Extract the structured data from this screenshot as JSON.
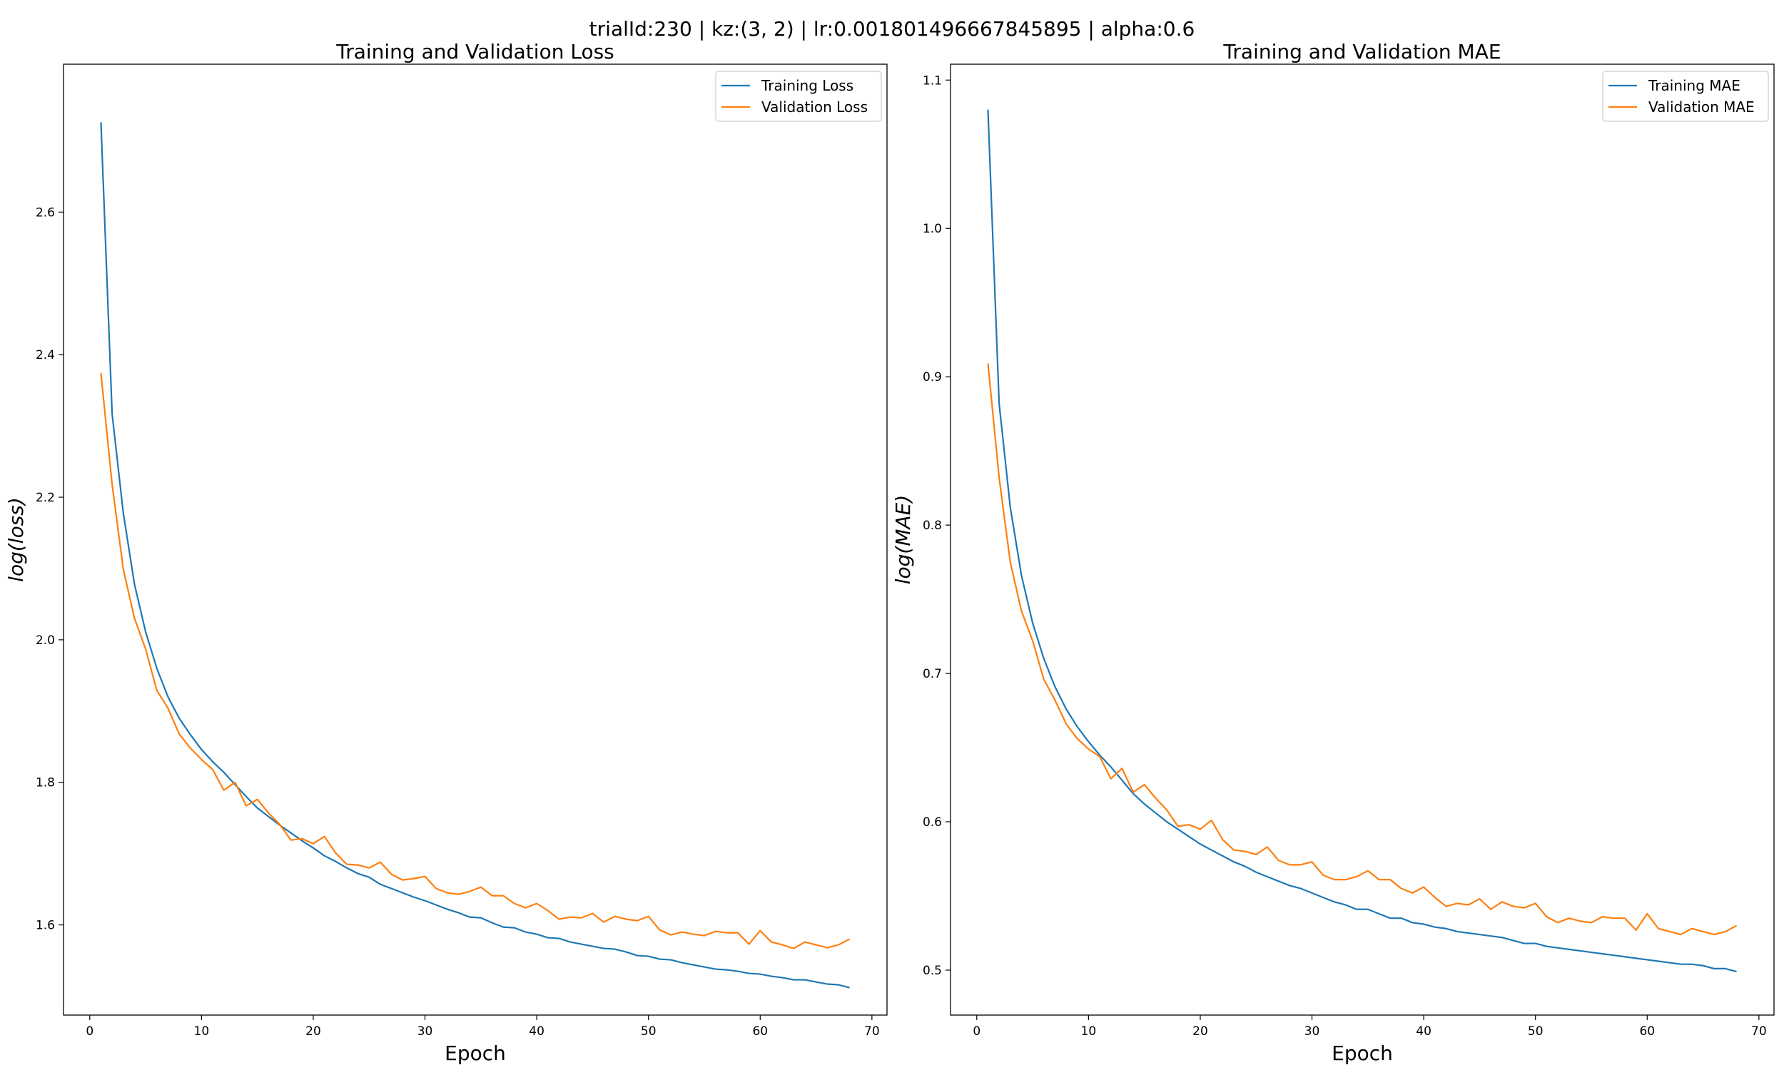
{
  "figure": {
    "suptitle": "trialId:230 | kz:(3, 2) | lr:0.001801496667845895 | alpha:0.6"
  },
  "colors": {
    "training": "#1f77b4",
    "validation": "#ff7f0e",
    "axes": "#000000",
    "background": "#ffffff"
  },
  "chart_data": [
    {
      "type": "line",
      "title": "Training and Validation Loss",
      "xlabel": "Epoch",
      "ylabel": "log(loss)",
      "xlim": [
        -2.35,
        71.35
      ],
      "ylim": [
        1.4735,
        2.8075
      ],
      "xticks": [
        0,
        10,
        20,
        30,
        40,
        50,
        60,
        70
      ],
      "yticks": [
        1.6,
        1.8,
        2.0,
        2.2,
        2.4,
        2.6
      ],
      "ytick_labels": [
        "1.6",
        "1.8",
        "2.0",
        "2.2",
        "2.4",
        "2.6"
      ],
      "grid": false,
      "legend_position": "upper right",
      "x": [
        1,
        2,
        3,
        4,
        5,
        6,
        7,
        8,
        9,
        10,
        11,
        12,
        13,
        14,
        15,
        16,
        17,
        18,
        19,
        20,
        21,
        22,
        23,
        24,
        25,
        26,
        27,
        28,
        29,
        30,
        31,
        32,
        33,
        34,
        35,
        36,
        37,
        38,
        39,
        40,
        41,
        42,
        43,
        44,
        45,
        46,
        47,
        48,
        49,
        50,
        51,
        52,
        53,
        54,
        55,
        56,
        57,
        58,
        59,
        60,
        61,
        62,
        63,
        64,
        65,
        66,
        67,
        68
      ],
      "series": [
        {
          "name": "Training Loss",
          "color": "#1f77b4",
          "values": [
            2.726,
            2.317,
            2.178,
            2.078,
            2.011,
            1.96,
            1.92,
            1.89,
            1.867,
            1.846,
            1.829,
            1.814,
            1.797,
            1.78,
            1.764,
            1.752,
            1.74,
            1.729,
            1.718,
            1.708,
            1.697,
            1.689,
            1.68,
            1.672,
            1.667,
            1.657,
            1.651,
            1.645,
            1.639,
            1.634,
            1.628,
            1.622,
            1.617,
            1.611,
            1.61,
            1.603,
            1.597,
            1.596,
            1.59,
            1.587,
            1.582,
            1.581,
            1.576,
            1.573,
            1.57,
            1.567,
            1.566,
            1.562,
            1.557,
            1.556,
            1.552,
            1.551,
            1.547,
            1.544,
            1.541,
            1.538,
            1.537,
            1.535,
            1.532,
            1.531,
            1.528,
            1.526,
            1.523,
            1.523,
            1.52,
            1.517,
            1.516,
            1.512
          ]
        },
        {
          "name": "Validation Loss",
          "color": "#ff7f0e",
          "values": [
            2.374,
            2.218,
            2.099,
            2.03,
            1.987,
            1.929,
            1.904,
            1.868,
            1.848,
            1.832,
            1.818,
            1.789,
            1.8,
            1.767,
            1.776,
            1.757,
            1.741,
            1.719,
            1.721,
            1.714,
            1.724,
            1.701,
            1.685,
            1.684,
            1.68,
            1.688,
            1.671,
            1.663,
            1.665,
            1.668,
            1.651,
            1.645,
            1.643,
            1.647,
            1.653,
            1.641,
            1.641,
            1.63,
            1.624,
            1.63,
            1.62,
            1.608,
            1.611,
            1.61,
            1.616,
            1.604,
            1.612,
            1.608,
            1.606,
            1.612,
            1.593,
            1.586,
            1.59,
            1.587,
            1.585,
            1.591,
            1.589,
            1.589,
            1.573,
            1.592,
            1.576,
            1.572,
            1.567,
            1.576,
            1.572,
            1.568,
            1.572,
            1.58
          ]
        }
      ]
    },
    {
      "type": "line",
      "title": "Training and Validation MAE",
      "xlabel": "Epoch",
      "ylabel": "log(MAE)",
      "xlim": [
        -2.35,
        71.35
      ],
      "ylim": [
        0.4697,
        1.1107
      ],
      "xticks": [
        0,
        10,
        20,
        30,
        40,
        50,
        60,
        70
      ],
      "yticks": [
        0.5,
        0.6,
        0.7,
        0.8,
        0.9,
        1.0,
        1.1
      ],
      "ytick_labels": [
        "0.5",
        "0.6",
        "0.7",
        "0.8",
        "0.9",
        "1.0",
        "1.1"
      ],
      "grid": false,
      "legend_position": "upper right",
      "x": [
        1,
        2,
        3,
        4,
        5,
        6,
        7,
        8,
        9,
        10,
        11,
        12,
        13,
        14,
        15,
        16,
        17,
        18,
        19,
        20,
        21,
        22,
        23,
        24,
        25,
        26,
        27,
        28,
        29,
        30,
        31,
        32,
        33,
        34,
        35,
        36,
        37,
        38,
        39,
        40,
        41,
        42,
        43,
        44,
        45,
        46,
        47,
        48,
        49,
        50,
        51,
        52,
        53,
        54,
        55,
        56,
        57,
        58,
        59,
        60,
        61,
        62,
        63,
        64,
        65,
        66,
        67,
        68
      ],
      "series": [
        {
          "name": "Training MAE",
          "color": "#1f77b4",
          "values": [
            1.08,
            0.882,
            0.812,
            0.766,
            0.734,
            0.71,
            0.691,
            0.676,
            0.664,
            0.654,
            0.645,
            0.637,
            0.628,
            0.619,
            0.612,
            0.606,
            0.6,
            0.595,
            0.59,
            0.585,
            0.581,
            0.577,
            0.573,
            0.57,
            0.566,
            0.563,
            0.56,
            0.557,
            0.555,
            0.552,
            0.549,
            0.546,
            0.544,
            0.541,
            0.541,
            0.538,
            0.535,
            0.535,
            0.532,
            0.531,
            0.529,
            0.528,
            0.526,
            0.525,
            0.524,
            0.523,
            0.522,
            0.52,
            0.518,
            0.518,
            0.516,
            0.515,
            0.514,
            0.513,
            0.512,
            0.511,
            0.51,
            0.509,
            0.508,
            0.507,
            0.506,
            0.505,
            0.504,
            0.504,
            0.503,
            0.501,
            0.501,
            0.499
          ]
        },
        {
          "name": "Validation MAE",
          "color": "#ff7f0e",
          "values": [
            0.909,
            0.832,
            0.775,
            0.742,
            0.722,
            0.696,
            0.682,
            0.666,
            0.656,
            0.649,
            0.644,
            0.629,
            0.636,
            0.62,
            0.625,
            0.616,
            0.608,
            0.597,
            0.598,
            0.595,
            0.601,
            0.588,
            0.581,
            0.58,
            0.578,
            0.583,
            0.574,
            0.571,
            0.571,
            0.573,
            0.564,
            0.561,
            0.561,
            0.563,
            0.567,
            0.561,
            0.561,
            0.555,
            0.552,
            0.556,
            0.549,
            0.543,
            0.545,
            0.544,
            0.548,
            0.541,
            0.546,
            0.543,
            0.542,
            0.545,
            0.536,
            0.532,
            0.535,
            0.533,
            0.532,
            0.536,
            0.535,
            0.535,
            0.527,
            0.538,
            0.528,
            0.526,
            0.524,
            0.528,
            0.526,
            0.524,
            0.526,
            0.53
          ]
        }
      ]
    }
  ]
}
